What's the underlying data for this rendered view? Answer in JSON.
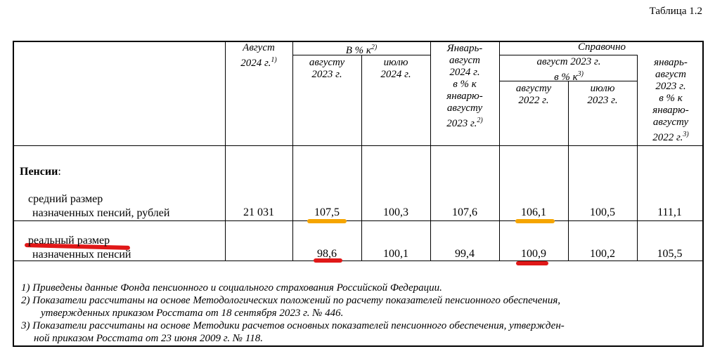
{
  "table_caption": "Таблица 1.2",
  "headers": {
    "col_aug2024": [
      "Август",
      "2024 г."
    ],
    "col_aug2024_sup": "1)",
    "group_pct": "В % к",
    "group_pct_sup": "2)",
    "sub_aug2023": [
      "августу",
      "2023 г."
    ],
    "sub_jul2024": [
      "июлю",
      "2024 г."
    ],
    "col_janaug2024": [
      "Январь-",
      "август",
      "2024 г.",
      "в % к",
      "январю-",
      "августу",
      "2023 г."
    ],
    "col_janaug2024_sup": "2)",
    "group_ref": "Справочно",
    "ref_subgroup": [
      "август 2023 г.",
      "в % к"
    ],
    "ref_subgroup_sup": "3)",
    "ref_aug2022": [
      "августу",
      "2022 г."
    ],
    "ref_jul2023": [
      "июлю",
      "2023 г."
    ],
    "ref_janaug2023": [
      "январь-",
      "август",
      "2023 г.",
      "в % к",
      "январю-",
      "августу",
      "2022 г."
    ],
    "ref_janaug2023_sup": "3)"
  },
  "rows": {
    "section_title": "Пенсии",
    "section_colon": ":",
    "row1_label": [
      "средний размер",
      "назначенных пенсий, рублей"
    ],
    "row1_values": [
      "21 031",
      "107,5",
      "100,3",
      "107,6",
      "106,1",
      "100,5",
      "111,1"
    ],
    "row2_label": [
      "реальный размер",
      "назначенных пенсий"
    ],
    "row2_values": [
      "",
      "98,6",
      "100,1",
      "99,4",
      "100,9",
      "100,2",
      "105,5"
    ]
  },
  "footnotes": [
    [
      "1) Приведены данные Фонда пенсионного и социального страхования Российской Федерации."
    ],
    [
      "2) Показатели рассчитаны на основе Методологических положений по расчету показателей пенсионного обеспечения,",
      "утвержденных приказом Росстата от 18 сентября 2023 г. № 446."
    ],
    [
      "3) Показатели рассчитаны на основе Методики расчетов основных показателей пенсионного обеспечения, утвержден-",
      "ной приказом Росстата от 23 июня 2009 г. № 118."
    ]
  ],
  "highlight_colors": {
    "orange": "#f5a500",
    "red": "#e01818"
  }
}
